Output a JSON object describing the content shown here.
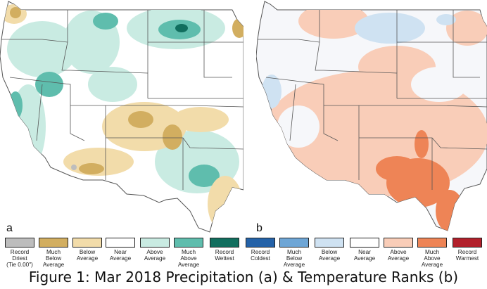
{
  "panels": {
    "a": {
      "letter": "a"
    },
    "b": {
      "letter": "b"
    }
  },
  "legend": [
    {
      "label": "Record\nDriest\n(Tie 0.00\")",
      "color": "#bdbdbd"
    },
    {
      "label": "Much\nBelow\nAverage",
      "color": "#d2ae60"
    },
    {
      "label": "Below\nAverage",
      "color": "#f2dcaa"
    },
    {
      "label": "Near\nAverage",
      "color": "#ffffff"
    },
    {
      "label": "Above\nAverage",
      "color": "#c9ebe2"
    },
    {
      "label": "Much\nAbove\nAverage",
      "color": "#5fbdad"
    },
    {
      "label": "Record\nWettest",
      "color": "#116e5e"
    },
    {
      "label": "Record\nColdest",
      "color": "#2462a8"
    },
    {
      "label": "Much\nBelow\nAverage",
      "color": "#6ea6d6"
    },
    {
      "label": "Below\nAverage",
      "color": "#cfe2f2"
    },
    {
      "label": "Near\nAverage",
      "color": "#ffffff"
    },
    {
      "label": "Above\nAverage",
      "color": "#f9cdb8"
    },
    {
      "label": "Much\nAbove\nAverage",
      "color": "#ee8456"
    },
    {
      "label": "Record\nWarmest",
      "color": "#b2202b"
    }
  ],
  "caption": "Figure 1: Mar 2018 Precipitation (a) & Temperature Ranks (b)"
}
